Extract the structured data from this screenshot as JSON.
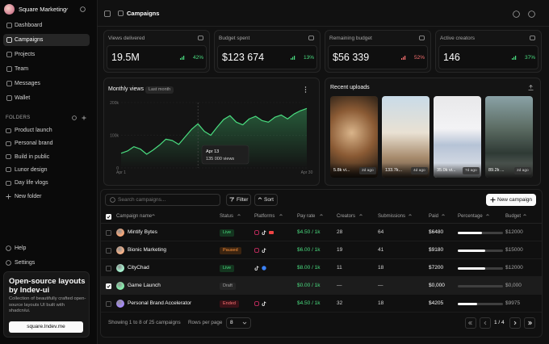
{
  "sidebar": {
    "workspace": "Square Marketing",
    "nav": [
      "Dashboard",
      "Campaigns",
      "Projects",
      "Team",
      "Messages",
      "Wallet"
    ],
    "folders_title": "FOLDERS",
    "folders": [
      "Product launch",
      "Personal brand",
      "Build in public",
      "Lunor design",
      "Day life vlogs"
    ],
    "new_folder": "New folder",
    "help": "Help",
    "settings": "Settings",
    "promo": {
      "title": "Open-source layouts by lndev-ui",
      "text": "Collection of beautifully crafted open-source layouts UI built with shadcn/ui.",
      "button": "square.lndev.me"
    }
  },
  "header": {
    "title": "Campaigns"
  },
  "stats": [
    {
      "label": "Views delivered",
      "value": "19.5M",
      "change": "42%"
    },
    {
      "label": "Budget spent",
      "value": "$123 674",
      "change": "13%"
    },
    {
      "label": "Remaining budget",
      "value": "$56 339",
      "change": "52%"
    },
    {
      "label": "Active creators",
      "value": "146",
      "change": "37%"
    }
  ],
  "monthly_views": {
    "type": "line",
    "title": "Monthly views",
    "period": "Last month",
    "categories": [
      "Apr 1",
      null,
      null,
      null,
      null,
      null,
      null,
      null,
      null,
      null,
      null,
      null,
      null,
      null,
      null,
      null,
      null,
      null,
      null,
      null,
      null,
      null,
      null,
      null,
      null,
      null,
      null,
      null,
      null,
      "Apr 30"
    ],
    "values": [
      45000,
      52000,
      65000,
      58000,
      42000,
      55000,
      70000,
      88000,
      84000,
      72000,
      95000,
      118000,
      135000,
      112000,
      100000,
      125000,
      148000,
      160000,
      140000,
      132000,
      150000,
      158000,
      145000,
      140000,
      155000,
      162000,
      150000,
      165000,
      175000,
      182000
    ],
    "color": "#4ade80",
    "ylim": [
      0,
      200000
    ],
    "yticks": [
      0,
      {
        "value": 100000,
        "label": "100k"
      },
      {
        "value": 200000,
        "label": "200k"
      }
    ],
    "grid": true,
    "tooltip": {
      "date": "Apr 13",
      "label": "135 000 views"
    }
  },
  "uploads": {
    "title": "Recent uploads",
    "items": [
      {
        "views": "5.8k vi...",
        "age": "2d ago"
      },
      {
        "views": "133.7k...",
        "age": "4d ago"
      },
      {
        "views": "35.0k vi...",
        "age": "7d ago"
      },
      {
        "views": "89.2k ...",
        "age": "2d ago"
      }
    ]
  },
  "table": {
    "search": "Search campaigns...",
    "filter": "Filter",
    "sort": "Sort",
    "new": "New campaign",
    "columns": [
      "Campaign name",
      "Status",
      "Platforms",
      "Pay rate",
      "Creators",
      "Submissions",
      "Paid",
      "Percentage",
      "Budget"
    ],
    "rows": [
      {
        "name": "Mintify Bytes",
        "status": "Live",
        "pay_rate": "$4.50 / 1k",
        "creators": 28,
        "submissions": 64,
        "paid": "$6480",
        "percentage": 54,
        "budget": "$12000"
      },
      {
        "name": "Bionic Marketing",
        "status": "Paused",
        "pay_rate": "$6.00 / 1k",
        "creators": 19,
        "submissions": 41,
        "paid": "$9180",
        "percentage": 61,
        "budget": "$15000"
      },
      {
        "name": "CityChad",
        "status": "Live",
        "pay_rate": "$8.00 / 1k",
        "creators": 11,
        "submissions": 18,
        "paid": "$7200",
        "percentage": 60,
        "budget": "$12000"
      },
      {
        "name": "Game Launch",
        "status": "Draft",
        "pay_rate": "$0.00 / 1k",
        "creators": "—",
        "submissions": "—",
        "paid": "$0,000",
        "percentage": 0,
        "budget": "$0,000"
      },
      {
        "name": "Personal Brand Accelerator",
        "status": "Ended",
        "pay_rate": "$4.50 / 1k",
        "creators": 32,
        "submissions": 18,
        "paid": "$4205",
        "percentage": 42,
        "budget": "$9975"
      }
    ],
    "footer": {
      "showing": "Showing 1 to 8 of 25 campaigns",
      "rows_per_page": "Rows per page",
      "page_size": "8",
      "page": "1 / 4"
    }
  }
}
